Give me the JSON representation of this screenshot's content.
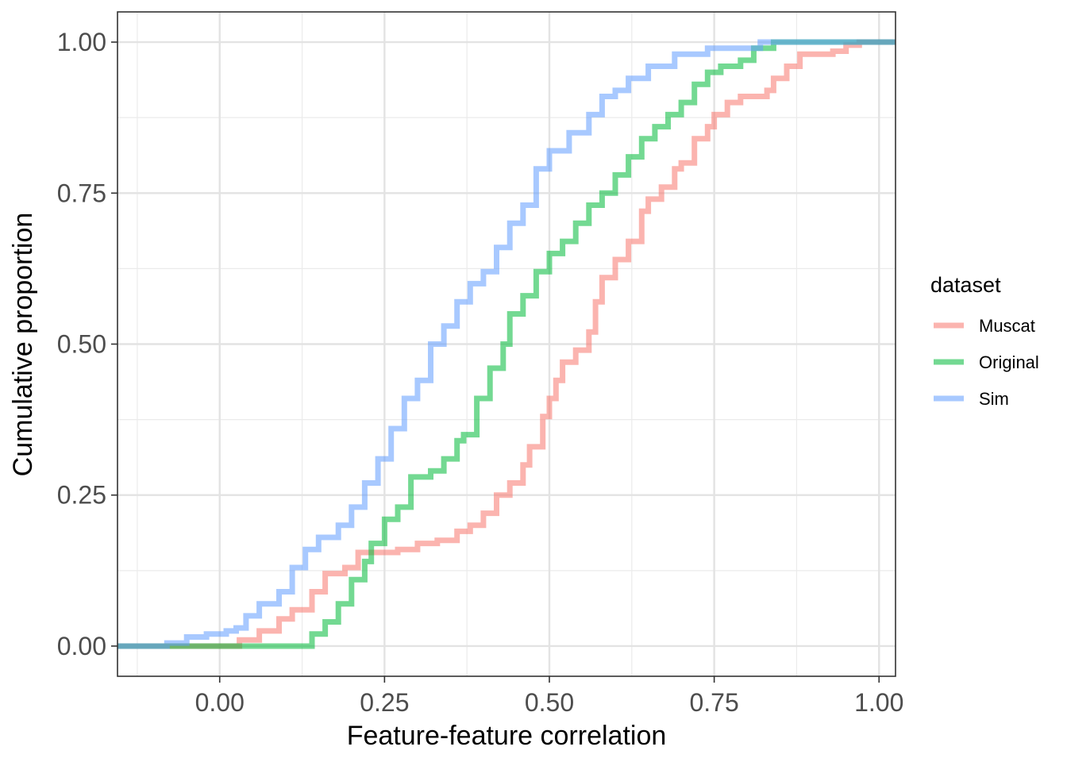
{
  "chart_data": {
    "type": "line",
    "title": "",
    "xlabel": "Feature-feature correlation",
    "ylabel": "Cumulative proportion",
    "xlim": [
      -0.155,
      1.025
    ],
    "ylim": [
      -0.05,
      1.05
    ],
    "x_ticks": [
      0.0,
      0.25,
      0.5,
      0.75,
      1.0
    ],
    "x_tick_labels": [
      "0.00",
      "0.25",
      "0.50",
      "0.75",
      "1.00"
    ],
    "y_ticks": [
      0.0,
      0.25,
      0.5,
      0.75,
      1.0
    ],
    "y_tick_labels": [
      "0.00",
      "0.25",
      "0.50",
      "0.75",
      "1.00"
    ],
    "grid": true,
    "legend": {
      "title": "dataset",
      "placement": "right"
    },
    "series": [
      {
        "name": "Muscat",
        "color": "#F8766D",
        "points": [
          [
            -0.155,
            0
          ],
          [
            -0.05,
            0
          ],
          [
            0.0,
            0
          ],
          [
            0.03,
            0.01
          ],
          [
            0.06,
            0.025
          ],
          [
            0.09,
            0.045
          ],
          [
            0.11,
            0.06
          ],
          [
            0.14,
            0.09
          ],
          [
            0.16,
            0.12
          ],
          [
            0.19,
            0.13
          ],
          [
            0.21,
            0.155
          ],
          [
            0.27,
            0.16
          ],
          [
            0.3,
            0.17
          ],
          [
            0.33,
            0.175
          ],
          [
            0.36,
            0.19
          ],
          [
            0.38,
            0.2
          ],
          [
            0.4,
            0.22
          ],
          [
            0.42,
            0.25
          ],
          [
            0.44,
            0.27
          ],
          [
            0.46,
            0.3
          ],
          [
            0.47,
            0.33
          ],
          [
            0.49,
            0.38
          ],
          [
            0.5,
            0.41
          ],
          [
            0.51,
            0.44
          ],
          [
            0.52,
            0.47
          ],
          [
            0.54,
            0.49
          ],
          [
            0.56,
            0.52
          ],
          [
            0.57,
            0.57
          ],
          [
            0.58,
            0.61
          ],
          [
            0.6,
            0.64
          ],
          [
            0.62,
            0.67
          ],
          [
            0.64,
            0.72
          ],
          [
            0.65,
            0.74
          ],
          [
            0.67,
            0.76
          ],
          [
            0.69,
            0.79
          ],
          [
            0.7,
            0.8
          ],
          [
            0.72,
            0.84
          ],
          [
            0.74,
            0.86
          ],
          [
            0.75,
            0.88
          ],
          [
            0.77,
            0.9
          ],
          [
            0.79,
            0.91
          ],
          [
            0.83,
            0.92
          ],
          [
            0.84,
            0.94
          ],
          [
            0.86,
            0.96
          ],
          [
            0.88,
            0.98
          ],
          [
            0.93,
            0.985
          ],
          [
            0.95,
            0.995
          ],
          [
            0.97,
            1.0
          ],
          [
            1.025,
            1.0
          ]
        ]
      },
      {
        "name": "Original",
        "color": "#00BA38",
        "points": [
          [
            -0.155,
            0
          ],
          [
            0.12,
            0
          ],
          [
            0.14,
            0.02
          ],
          [
            0.16,
            0.04
          ],
          [
            0.18,
            0.07
          ],
          [
            0.2,
            0.11
          ],
          [
            0.22,
            0.14
          ],
          [
            0.23,
            0.17
          ],
          [
            0.25,
            0.21
          ],
          [
            0.27,
            0.23
          ],
          [
            0.29,
            0.28
          ],
          [
            0.32,
            0.29
          ],
          [
            0.34,
            0.31
          ],
          [
            0.36,
            0.34
          ],
          [
            0.37,
            0.35
          ],
          [
            0.39,
            0.41
          ],
          [
            0.41,
            0.46
          ],
          [
            0.43,
            0.5
          ],
          [
            0.44,
            0.55
          ],
          [
            0.46,
            0.58
          ],
          [
            0.48,
            0.62
          ],
          [
            0.5,
            0.65
          ],
          [
            0.52,
            0.67
          ],
          [
            0.54,
            0.7
          ],
          [
            0.56,
            0.73
          ],
          [
            0.58,
            0.75
          ],
          [
            0.6,
            0.78
          ],
          [
            0.62,
            0.81
          ],
          [
            0.64,
            0.84
          ],
          [
            0.66,
            0.86
          ],
          [
            0.68,
            0.88
          ],
          [
            0.7,
            0.9
          ],
          [
            0.72,
            0.93
          ],
          [
            0.74,
            0.95
          ],
          [
            0.76,
            0.96
          ],
          [
            0.79,
            0.97
          ],
          [
            0.81,
            0.99
          ],
          [
            0.84,
            1.0
          ],
          [
            1.025,
            1.0
          ]
        ]
      },
      {
        "name": "Sim",
        "color": "#619CFF",
        "points": [
          [
            -0.155,
            0
          ],
          [
            -0.12,
            0
          ],
          [
            -0.08,
            0.005
          ],
          [
            -0.05,
            0.015
          ],
          [
            -0.02,
            0.02
          ],
          [
            0.01,
            0.025
          ],
          [
            0.025,
            0.03
          ],
          [
            0.04,
            0.05
          ],
          [
            0.06,
            0.07
          ],
          [
            0.09,
            0.09
          ],
          [
            0.11,
            0.13
          ],
          [
            0.13,
            0.16
          ],
          [
            0.15,
            0.18
          ],
          [
            0.18,
            0.2
          ],
          [
            0.2,
            0.23
          ],
          [
            0.22,
            0.27
          ],
          [
            0.24,
            0.31
          ],
          [
            0.26,
            0.36
          ],
          [
            0.28,
            0.41
          ],
          [
            0.3,
            0.44
          ],
          [
            0.32,
            0.5
          ],
          [
            0.34,
            0.53
          ],
          [
            0.36,
            0.57
          ],
          [
            0.38,
            0.6
          ],
          [
            0.4,
            0.62
          ],
          [
            0.42,
            0.66
          ],
          [
            0.44,
            0.7
          ],
          [
            0.46,
            0.73
          ],
          [
            0.48,
            0.79
          ],
          [
            0.5,
            0.82
          ],
          [
            0.53,
            0.85
          ],
          [
            0.56,
            0.88
          ],
          [
            0.58,
            0.91
          ],
          [
            0.6,
            0.92
          ],
          [
            0.62,
            0.94
          ],
          [
            0.65,
            0.96
          ],
          [
            0.69,
            0.98
          ],
          [
            0.74,
            0.99
          ],
          [
            0.82,
            1.0
          ],
          [
            1.025,
            1.0
          ]
        ]
      }
    ]
  }
}
